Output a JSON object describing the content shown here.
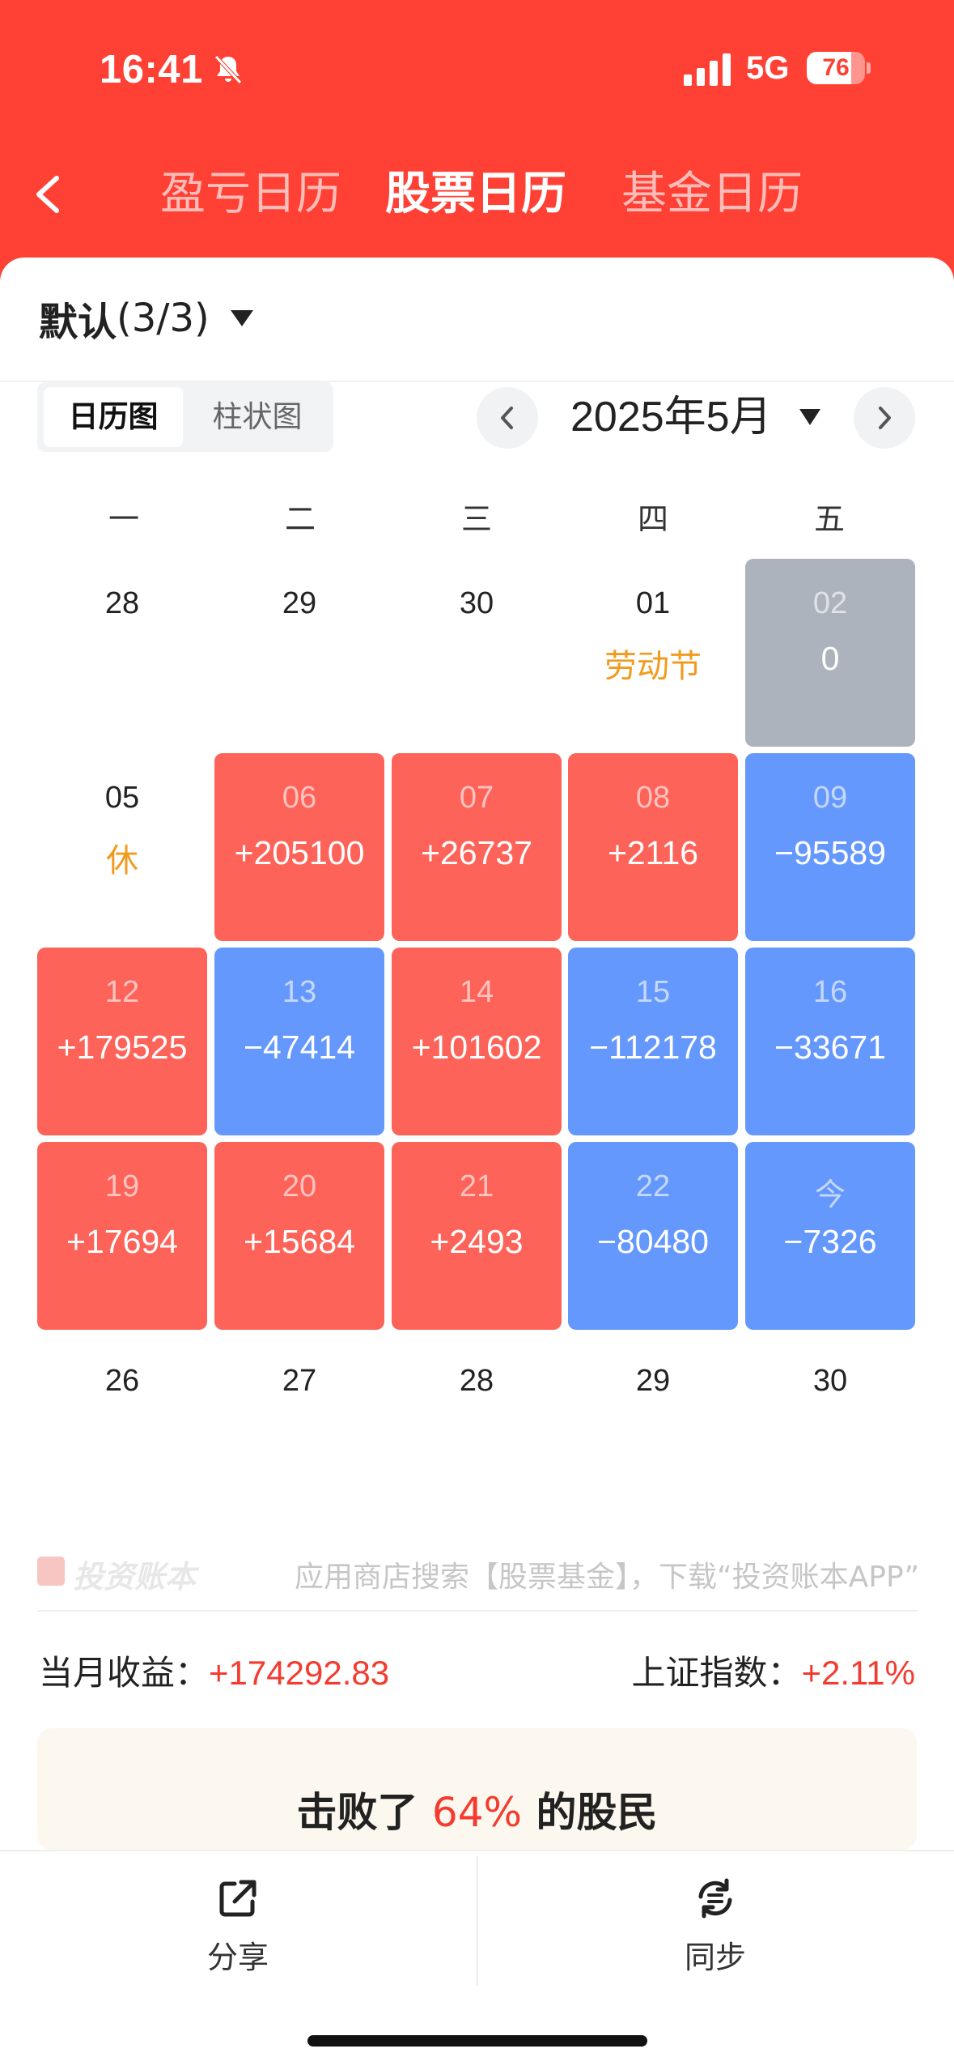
{
  "status_bar": {
    "time": "16:41",
    "network": "5G",
    "battery": "76",
    "battery_level": 0.76
  },
  "header": {
    "tabs": [
      {
        "label": "盈亏日历",
        "active": false
      },
      {
        "label": "股票日历",
        "active": true
      },
      {
        "label": "基金日历",
        "active": false
      }
    ]
  },
  "group_selector": {
    "name": "默认",
    "count": "(3/3)"
  },
  "view_toggle": {
    "options": [
      "日历图",
      "柱状图"
    ],
    "selected": "日历图"
  },
  "month_picker": {
    "label": "2025年5月"
  },
  "weekdays": [
    "一",
    "二",
    "三",
    "四",
    "五"
  ],
  "calendar": [
    [
      {
        "day": "28",
        "value": "",
        "note": "",
        "style": "plain"
      },
      {
        "day": "29",
        "value": "",
        "note": "",
        "style": "plain"
      },
      {
        "day": "30",
        "value": "",
        "note": "",
        "style": "plain"
      },
      {
        "day": "01",
        "value": "",
        "note": "劳动节",
        "style": "plain"
      },
      {
        "day": "02",
        "value": "0",
        "note": "",
        "style": "gray"
      }
    ],
    [
      {
        "day": "05",
        "value": "",
        "note": "休",
        "style": "plain"
      },
      {
        "day": "06",
        "value": "+205100",
        "note": "",
        "style": "red"
      },
      {
        "day": "07",
        "value": "+26737",
        "note": "",
        "style": "red"
      },
      {
        "day": "08",
        "value": "+2116",
        "note": "",
        "style": "red"
      },
      {
        "day": "09",
        "value": "−95589",
        "note": "",
        "style": "blue"
      }
    ],
    [
      {
        "day": "12",
        "value": "+179525",
        "note": "",
        "style": "red"
      },
      {
        "day": "13",
        "value": "−47414",
        "note": "",
        "style": "blue"
      },
      {
        "day": "14",
        "value": "+101602",
        "note": "",
        "style": "red"
      },
      {
        "day": "15",
        "value": "−112178",
        "note": "",
        "style": "blue"
      },
      {
        "day": "16",
        "value": "−33671",
        "note": "",
        "style": "blue"
      }
    ],
    [
      {
        "day": "19",
        "value": "+17694",
        "note": "",
        "style": "red"
      },
      {
        "day": "20",
        "value": "+15684",
        "note": "",
        "style": "red"
      },
      {
        "day": "21",
        "value": "+2493",
        "note": "",
        "style": "red"
      },
      {
        "day": "22",
        "value": "−80480",
        "note": "",
        "style": "blue"
      },
      {
        "day": "今",
        "value": "−7326",
        "note": "",
        "style": "blue"
      }
    ],
    [
      {
        "day": "26",
        "value": "",
        "note": "",
        "style": "plain"
      },
      {
        "day": "27",
        "value": "",
        "note": "",
        "style": "plain"
      },
      {
        "day": "28",
        "value": "",
        "note": "",
        "style": "plain"
      },
      {
        "day": "29",
        "value": "",
        "note": "",
        "style": "plain"
      },
      {
        "day": "30",
        "value": "",
        "note": "",
        "style": "plain"
      }
    ]
  ],
  "brand": {
    "name": "投资账本",
    "slogan": "应用商店搜索【股票基金】，下载“投资账本APP”"
  },
  "summary": {
    "monthly_label": "当月收益：",
    "monthly_value": "+174292.83",
    "index_label": "上证指数：",
    "index_value": "+2.11%"
  },
  "beat": {
    "prefix": "击败了 ",
    "percent": "64%",
    "suffix": " 的股民"
  },
  "bottom_actions": {
    "share": "分享",
    "sync": "同步"
  },
  "colors": {
    "header_red": "#fe4134",
    "profit_red": "#fe6359",
    "loss_blue": "#6598fd",
    "neutral_gray": "#adb3bc",
    "holiday_orange": "#f29a1e"
  }
}
